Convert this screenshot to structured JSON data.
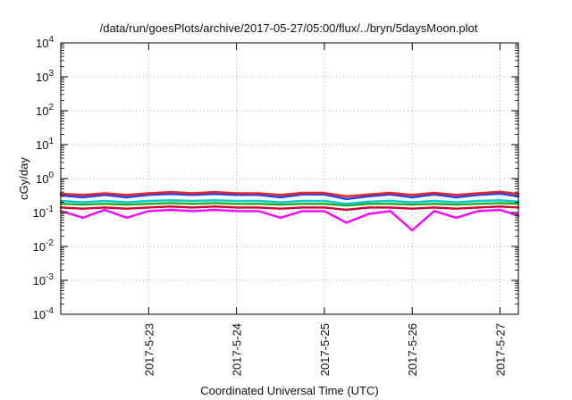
{
  "chart_data": {
    "type": "line",
    "title": "/data/run/goesPlots/archive/2017-05-27/05:00/flux/../bryn/5daysMoon.plot",
    "xlabel": "Coordinated Universal Time (UTC)",
    "ylabel": "cGy/day",
    "yscale": "log",
    "ylim": [
      0.0001,
      10000
    ],
    "xlim": [
      "2017-05-22 00:00",
      "2017-05-27 05:00"
    ],
    "grid": true,
    "y_ticks": [
      {
        "base": "10",
        "exp": "-4",
        "value": 0.0001
      },
      {
        "base": "10",
        "exp": "-3",
        "value": 0.001
      },
      {
        "base": "10",
        "exp": "-2",
        "value": 0.01
      },
      {
        "base": "10",
        "exp": "-1",
        "value": 0.1
      },
      {
        "base": "10",
        "exp": "0",
        "value": 1
      },
      {
        "base": "10",
        "exp": "1",
        "value": 10
      },
      {
        "base": "10",
        "exp": "2",
        "value": 100
      },
      {
        "base": "10",
        "exp": "3",
        "value": 1000
      },
      {
        "base": "10",
        "exp": "4",
        "value": 10000
      }
    ],
    "x_ticks": [
      "2017-5-23",
      "2017-5-24",
      "2017-5-25",
      "2017-5-26",
      "2017-5-27"
    ],
    "x_tick_dates": [
      "2017-05-23 00:00",
      "2017-05-24 00:00",
      "2017-05-25 00:00",
      "2017-05-26 00:00",
      "2017-05-27 00:00"
    ],
    "x_ticks_minor_dates": [
      "2017-05-22 00:00"
    ],
    "series": [
      {
        "color": "#ff00ff",
        "x": [
          "2017-05-22 00:00",
          "2017-05-22 06:00",
          "2017-05-22 12:00",
          "2017-05-22 18:00",
          "2017-05-23 00:00",
          "2017-05-23 06:00",
          "2017-05-23 12:00",
          "2017-05-23 18:00",
          "2017-05-24 00:00",
          "2017-05-24 06:00",
          "2017-05-24 12:00",
          "2017-05-24 18:00",
          "2017-05-25 00:00",
          "2017-05-25 06:00",
          "2017-05-25 12:00",
          "2017-05-25 18:00",
          "2017-05-26 00:00",
          "2017-05-26 06:00",
          "2017-05-26 12:00",
          "2017-05-26 18:00",
          "2017-05-27 00:00",
          "2017-05-27 05:00"
        ],
        "y": [
          0.11,
          0.07,
          0.12,
          0.07,
          0.11,
          0.12,
          0.11,
          0.12,
          0.11,
          0.11,
          0.07,
          0.11,
          0.11,
          0.05,
          0.09,
          0.11,
          0.03,
          0.11,
          0.07,
          0.11,
          0.12,
          0.08
        ]
      },
      {
        "color": "#cc0033",
        "x": [
          "2017-05-22 00:00",
          "2017-05-22 06:00",
          "2017-05-22 12:00",
          "2017-05-22 18:00",
          "2017-05-23 00:00",
          "2017-05-23 06:00",
          "2017-05-23 12:00",
          "2017-05-23 18:00",
          "2017-05-24 00:00",
          "2017-05-24 06:00",
          "2017-05-24 12:00",
          "2017-05-24 18:00",
          "2017-05-25 00:00",
          "2017-05-25 06:00",
          "2017-05-25 12:00",
          "2017-05-25 18:00",
          "2017-05-26 00:00",
          "2017-05-26 06:00",
          "2017-05-26 12:00",
          "2017-05-26 18:00",
          "2017-05-27 00:00",
          "2017-05-27 05:00"
        ],
        "y": [
          0.14,
          0.13,
          0.14,
          0.13,
          0.14,
          0.15,
          0.14,
          0.15,
          0.14,
          0.14,
          0.13,
          0.14,
          0.14,
          0.12,
          0.14,
          0.14,
          0.13,
          0.14,
          0.13,
          0.14,
          0.15,
          0.14
        ]
      },
      {
        "color": "#22aa22",
        "x": [
          "2017-05-22 00:00",
          "2017-05-22 06:00",
          "2017-05-22 12:00",
          "2017-05-22 18:00",
          "2017-05-23 00:00",
          "2017-05-23 06:00",
          "2017-05-23 12:00",
          "2017-05-23 18:00",
          "2017-05-24 00:00",
          "2017-05-24 06:00",
          "2017-05-24 12:00",
          "2017-05-24 18:00",
          "2017-05-25 00:00",
          "2017-05-25 06:00",
          "2017-05-25 12:00",
          "2017-05-25 18:00",
          "2017-05-26 00:00",
          "2017-05-26 06:00",
          "2017-05-26 12:00",
          "2017-05-26 18:00",
          "2017-05-27 00:00",
          "2017-05-27 05:00"
        ],
        "y": [
          0.18,
          0.17,
          0.18,
          0.17,
          0.18,
          0.19,
          0.18,
          0.19,
          0.18,
          0.18,
          0.17,
          0.18,
          0.18,
          0.16,
          0.18,
          0.18,
          0.17,
          0.18,
          0.17,
          0.18,
          0.19,
          0.18
        ]
      },
      {
        "color": "#00cccc",
        "x": [
          "2017-05-22 00:00",
          "2017-05-22 06:00",
          "2017-05-22 12:00",
          "2017-05-22 18:00",
          "2017-05-23 00:00",
          "2017-05-23 06:00",
          "2017-05-23 12:00",
          "2017-05-23 18:00",
          "2017-05-24 00:00",
          "2017-05-24 06:00",
          "2017-05-24 12:00",
          "2017-05-24 18:00",
          "2017-05-25 00:00",
          "2017-05-25 06:00",
          "2017-05-25 12:00",
          "2017-05-25 18:00",
          "2017-05-26 00:00",
          "2017-05-26 06:00",
          "2017-05-26 12:00",
          "2017-05-26 18:00",
          "2017-05-27 00:00",
          "2017-05-27 05:00"
        ],
        "y": [
          0.22,
          0.2,
          0.22,
          0.2,
          0.22,
          0.23,
          0.22,
          0.23,
          0.22,
          0.22,
          0.2,
          0.22,
          0.22,
          0.18,
          0.21,
          0.22,
          0.2,
          0.22,
          0.2,
          0.22,
          0.23,
          0.21
        ]
      },
      {
        "color": "#2244ee",
        "x": [
          "2017-05-22 00:00",
          "2017-05-22 06:00",
          "2017-05-22 12:00",
          "2017-05-22 18:00",
          "2017-05-23 00:00",
          "2017-05-23 06:00",
          "2017-05-23 12:00",
          "2017-05-23 18:00",
          "2017-05-24 00:00",
          "2017-05-24 06:00",
          "2017-05-24 12:00",
          "2017-05-24 18:00",
          "2017-05-25 00:00",
          "2017-05-25 06:00",
          "2017-05-25 12:00",
          "2017-05-25 18:00",
          "2017-05-26 00:00",
          "2017-05-26 06:00",
          "2017-05-26 12:00",
          "2017-05-26 18:00",
          "2017-05-27 00:00",
          "2017-05-27 05:00"
        ],
        "y": [
          0.32,
          0.28,
          0.33,
          0.28,
          0.33,
          0.35,
          0.33,
          0.35,
          0.33,
          0.33,
          0.28,
          0.34,
          0.34,
          0.25,
          0.3,
          0.34,
          0.28,
          0.34,
          0.28,
          0.33,
          0.36,
          0.3
        ]
      },
      {
        "color": "#ee2222",
        "x": [
          "2017-05-22 00:00",
          "2017-05-22 06:00",
          "2017-05-22 12:00",
          "2017-05-22 18:00",
          "2017-05-23 00:00",
          "2017-05-23 06:00",
          "2017-05-23 12:00",
          "2017-05-23 18:00",
          "2017-05-24 00:00",
          "2017-05-24 06:00",
          "2017-05-24 12:00",
          "2017-05-24 18:00",
          "2017-05-25 00:00",
          "2017-05-25 06:00",
          "2017-05-25 12:00",
          "2017-05-25 18:00",
          "2017-05-26 00:00",
          "2017-05-26 06:00",
          "2017-05-26 12:00",
          "2017-05-26 18:00",
          "2017-05-27 00:00",
          "2017-05-27 05:00"
        ],
        "y": [
          0.36,
          0.33,
          0.37,
          0.33,
          0.37,
          0.4,
          0.37,
          0.4,
          0.37,
          0.37,
          0.33,
          0.38,
          0.38,
          0.3,
          0.34,
          0.38,
          0.33,
          0.38,
          0.33,
          0.37,
          0.41,
          0.35
        ]
      }
    ]
  }
}
